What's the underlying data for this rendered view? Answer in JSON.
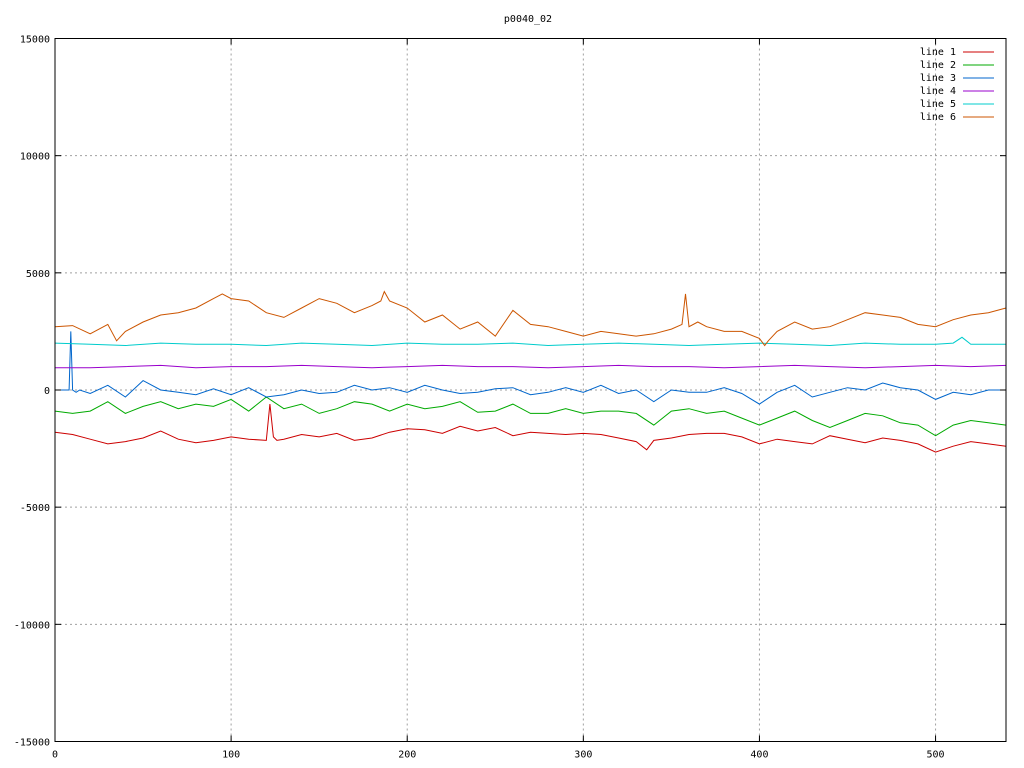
{
  "chart_data": {
    "type": "line",
    "title": "p0040_02",
    "xlabel": "",
    "ylabel": "",
    "xlim": [
      0,
      540
    ],
    "ylim": [
      -15000,
      15000
    ],
    "xticks": [
      0,
      100,
      200,
      300,
      400,
      500
    ],
    "xtick_labels": [
      "0",
      "100",
      "200",
      "300",
      "400",
      "500"
    ],
    "yticks": [
      -15000,
      -10000,
      -5000,
      0,
      5000,
      10000,
      15000
    ],
    "ytick_labels": [
      "-15000",
      "-10000",
      "-5000",
      "0",
      "5000",
      "10000",
      "15000"
    ],
    "grid": true,
    "legend_position": "top-right",
    "series": [
      {
        "name": "line 1",
        "color": "#cc0000",
        "x": [
          0,
          10,
          20,
          30,
          40,
          50,
          60,
          70,
          80,
          90,
          100,
          110,
          120,
          122,
          124,
          126,
          130,
          140,
          150,
          160,
          170,
          180,
          190,
          200,
          210,
          220,
          230,
          240,
          250,
          260,
          270,
          280,
          290,
          300,
          310,
          320,
          330,
          336,
          340,
          350,
          360,
          370,
          380,
          390,
          400,
          410,
          420,
          430,
          440,
          450,
          460,
          470,
          480,
          490,
          500,
          510,
          520,
          530,
          540
        ],
        "y": [
          -1800,
          -1900,
          -2100,
          -2300,
          -2200,
          -2050,
          -1750,
          -2100,
          -2250,
          -2150,
          -2000,
          -2100,
          -2150,
          -600,
          -2000,
          -2150,
          -2100,
          -1900,
          -2000,
          -1850,
          -2150,
          -2050,
          -1800,
          -1650,
          -1700,
          -1850,
          -1550,
          -1750,
          -1600,
          -1950,
          -1800,
          -1850,
          -1900,
          -1850,
          -1900,
          -2050,
          -2200,
          -2550,
          -2150,
          -2050,
          -1900,
          -1850,
          -1850,
          -2000,
          -2300,
          -2100,
          -2200,
          -2300,
          -1950,
          -2100,
          -2250,
          -2050,
          -2150,
          -2300,
          -2650,
          -2400,
          -2200,
          -2300,
          -2400
        ]
      },
      {
        "name": "line 2",
        "color": "#00aa00",
        "x": [
          0,
          10,
          20,
          30,
          40,
          50,
          60,
          70,
          80,
          90,
          100,
          110,
          120,
          130,
          140,
          150,
          160,
          170,
          180,
          190,
          200,
          210,
          220,
          230,
          240,
          250,
          260,
          270,
          280,
          290,
          300,
          310,
          320,
          330,
          340,
          350,
          360,
          370,
          380,
          390,
          400,
          410,
          420,
          430,
          440,
          450,
          460,
          470,
          480,
          490,
          500,
          510,
          520,
          530,
          540
        ],
        "y": [
          -900,
          -1000,
          -900,
          -500,
          -1000,
          -700,
          -500,
          -800,
          -600,
          -700,
          -400,
          -900,
          -300,
          -800,
          -600,
          -1000,
          -800,
          -500,
          -600,
          -900,
          -600,
          -800,
          -700,
          -500,
          -950,
          -900,
          -600,
          -1000,
          -1000,
          -800,
          -1000,
          -900,
          -900,
          -1000,
          -1500,
          -900,
          -800,
          -1000,
          -900,
          -1200,
          -1500,
          -1200,
          -900,
          -1300,
          -1600,
          -1300,
          -1000,
          -1100,
          -1400,
          -1500,
          -1950,
          -1500,
          -1300,
          -1400,
          -1500
        ]
      },
      {
        "name": "line 3",
        "color": "#0066cc",
        "x": [
          0,
          6,
          8,
          9,
          10,
          12,
          14,
          20,
          30,
          40,
          50,
          60,
          70,
          80,
          90,
          100,
          110,
          120,
          130,
          140,
          150,
          160,
          170,
          180,
          190,
          200,
          210,
          220,
          230,
          240,
          250,
          260,
          270,
          280,
          290,
          300,
          310,
          320,
          330,
          340,
          350,
          360,
          370,
          380,
          390,
          400,
          410,
          420,
          430,
          440,
          450,
          460,
          470,
          480,
          490,
          500,
          510,
          520,
          530,
          540
        ],
        "y": [
          0,
          0,
          0,
          2500,
          0,
          -100,
          0,
          -150,
          200,
          -300,
          400,
          0,
          -100,
          -200,
          50,
          -200,
          100,
          -300,
          -200,
          0,
          -150,
          -100,
          200,
          0,
          100,
          -100,
          200,
          0,
          -150,
          -100,
          50,
          100,
          -200,
          -100,
          100,
          -100,
          200,
          -150,
          0,
          -500,
          0,
          -100,
          -100,
          100,
          -150,
          -600,
          -100,
          200,
          -300,
          -100,
          100,
          0,
          300,
          100,
          0,
          -400,
          -100,
          -200,
          0,
          0
        ]
      },
      {
        "name": "line 4",
        "color": "#9900cc",
        "x": [
          0,
          20,
          40,
          60,
          80,
          100,
          120,
          140,
          160,
          180,
          200,
          220,
          240,
          260,
          280,
          300,
          320,
          340,
          360,
          380,
          400,
          420,
          440,
          460,
          480,
          500,
          520,
          540
        ],
        "y": [
          950,
          950,
          1000,
          1050,
          950,
          1000,
          1000,
          1050,
          1000,
          950,
          1000,
          1050,
          1000,
          1000,
          950,
          1000,
          1050,
          1000,
          1000,
          950,
          1000,
          1050,
          1000,
          950,
          1000,
          1050,
          1000,
          1050
        ]
      },
      {
        "name": "line 5",
        "color": "#00cccc",
        "x": [
          0,
          20,
          40,
          60,
          80,
          100,
          120,
          140,
          160,
          180,
          200,
          220,
          240,
          260,
          280,
          300,
          320,
          340,
          360,
          380,
          400,
          420,
          440,
          460,
          480,
          500,
          510,
          515,
          520,
          540
        ],
        "y": [
          2000,
          1950,
          1900,
          2000,
          1950,
          1950,
          1900,
          2000,
          1950,
          1900,
          2000,
          1950,
          1950,
          2000,
          1900,
          1950,
          2000,
          1950,
          1900,
          1950,
          2000,
          1950,
          1900,
          2000,
          1950,
          1950,
          2000,
          2250,
          1950,
          1950
        ]
      },
      {
        "name": "line 6",
        "color": "#cc5500",
        "x": [
          0,
          10,
          20,
          30,
          35,
          40,
          50,
          60,
          70,
          80,
          90,
          95,
          100,
          110,
          120,
          130,
          140,
          150,
          160,
          170,
          180,
          185,
          187,
          190,
          200,
          210,
          220,
          230,
          240,
          250,
          260,
          270,
          280,
          290,
          300,
          310,
          320,
          330,
          340,
          350,
          356,
          358,
          360,
          365,
          370,
          380,
          390,
          400,
          403,
          405,
          410,
          420,
          430,
          440,
          450,
          460,
          470,
          480,
          490,
          500,
          510,
          520,
          530,
          540
        ],
        "y": [
          2700,
          2750,
          2400,
          2800,
          2100,
          2500,
          2900,
          3200,
          3300,
          3500,
          3900,
          4100,
          3900,
          3800,
          3300,
          3100,
          3500,
          3900,
          3700,
          3300,
          3600,
          3800,
          4200,
          3800,
          3500,
          2900,
          3200,
          2600,
          2900,
          2300,
          3400,
          2800,
          2700,
          2500,
          2300,
          2500,
          2400,
          2300,
          2400,
          2600,
          2800,
          4100,
          2700,
          2900,
          2700,
          2500,
          2500,
          2200,
          1900,
          2100,
          2500,
          2900,
          2600,
          2700,
          3000,
          3300,
          3200,
          3100,
          2800,
          2700,
          3000,
          3200,
          3300,
          3500
        ]
      }
    ]
  }
}
